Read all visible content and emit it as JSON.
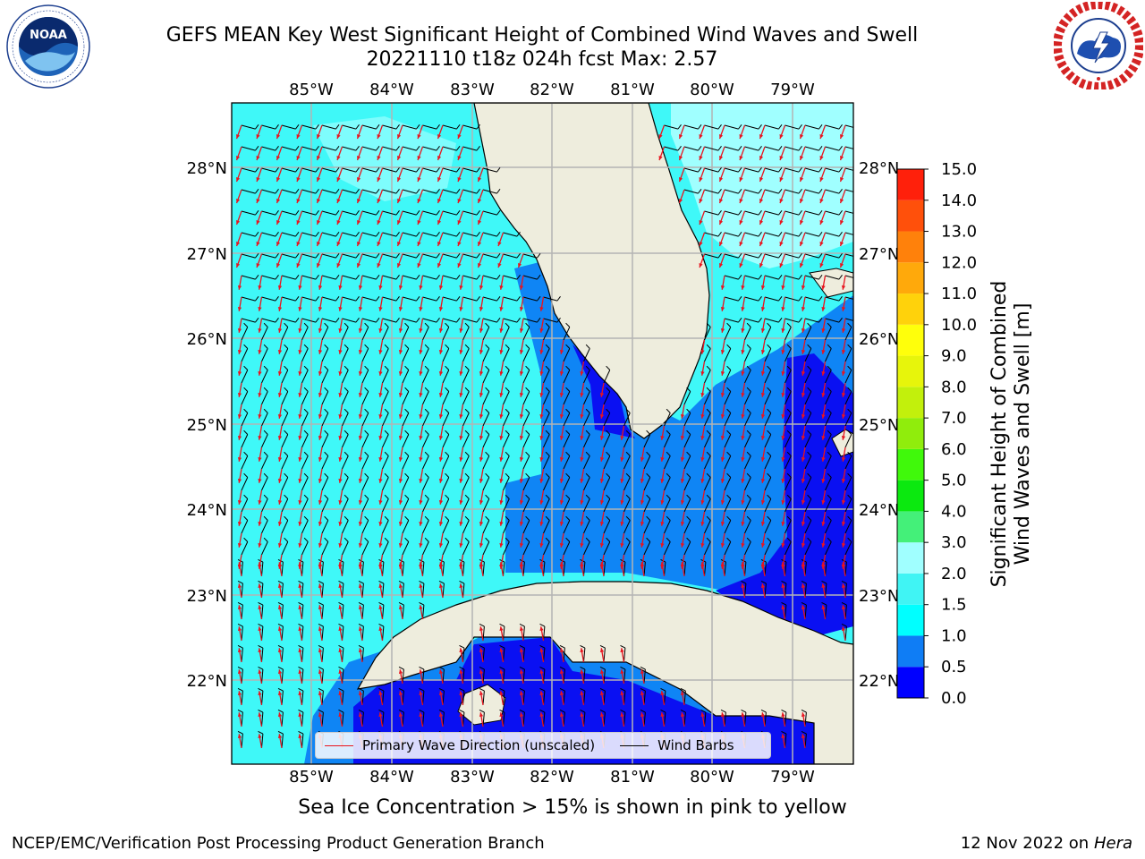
{
  "title": {
    "line1": "GEFS MEAN Key West Significant Height of Combined Wind Waves and Swell",
    "line2": "20221110 t18z 024h fcst   Max: 2.57"
  },
  "map": {
    "lon_labels": [
      "85°W",
      "84°W",
      "83°W",
      "82°W",
      "81°W",
      "80°W",
      "79°W"
    ],
    "lat_labels": [
      "28°N",
      "27°N",
      "26°N",
      "25°N",
      "24°N",
      "23°N",
      "22°N"
    ],
    "colors": {
      "land": "#eeeddd",
      "ocean_light": "#a0ffff",
      "ocean_cyan": "#3ff8f8",
      "ocean_mid": "#0f85f5",
      "ocean_deep": "#0a10f2",
      "arrow": "#e8141e",
      "barb": "#000000",
      "grid": "#b4b4b4"
    }
  },
  "legend": {
    "wave_label": "Primary Wave Direction (unscaled)",
    "barb_label": "Wind Barbs",
    "wave_color": "#e8141e",
    "barb_color": "#000000"
  },
  "colorbar": {
    "title_line1": "Significant Height of Combined",
    "title_line2": "Wind Waves and Swell [m]",
    "ticks": [
      "0.0",
      "0.5",
      "1.0",
      "1.5",
      "2.0",
      "3.0",
      "4.0",
      "5.0",
      "6.0",
      "7.0",
      "8.0",
      "9.0",
      "10.0",
      "11.0",
      "12.0",
      "13.0",
      "14.0",
      "15.0"
    ],
    "colors": [
      "#0000ff",
      "#0f7df5",
      "#00ffff",
      "#40f4f4",
      "#a0ffff",
      "#44f079",
      "#0be90f",
      "#40f90b",
      "#90ed0c",
      "#c2f00c",
      "#e7f50b",
      "#ffff0b",
      "#ffd20b",
      "#ffa90b",
      "#ff810b",
      "#ff500b",
      "#ff200b"
    ]
  },
  "caption": "Sea Ice Concentration > 15% is shown in pink to yellow",
  "footer": {
    "left": "NCEP/EMC/Verification Post Processing Product Generation Branch",
    "date": "12 Nov 2022 on",
    "host": "Hera"
  },
  "logos": {
    "noaa_text": "NOAA",
    "noaa_ring": "NATIONAL OCEANIC AND ATMOSPHERIC ADMINISTRATION · U.S. DEPARTMENT OF COMMERCE",
    "nws_ring": "NATIONAL WEATHER SERVICE"
  }
}
